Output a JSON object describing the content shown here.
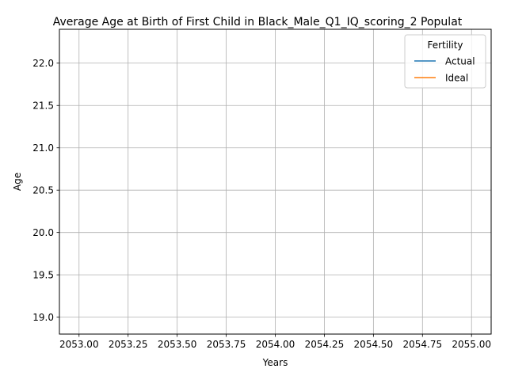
{
  "chart_data": {
    "type": "line",
    "title": "Average Age at Birth of First Child in Black_Male_Q1_IQ_scoring_2 Populat",
    "xlabel": "Years",
    "ylabel": "Age",
    "xlim": [
      2052.9,
      2055.1
    ],
    "ylim": [
      18.8,
      22.4
    ],
    "xticks": [
      2053.0,
      2053.25,
      2053.5,
      2053.75,
      2054.0,
      2054.25,
      2054.5,
      2054.75,
      2055.0
    ],
    "xtick_labels": [
      "2053.00",
      "2053.25",
      "2053.50",
      "2053.75",
      "2054.00",
      "2054.25",
      "2054.50",
      "2054.75",
      "2055.00"
    ],
    "yticks": [
      19.0,
      19.5,
      20.0,
      20.5,
      21.0,
      21.5,
      22.0
    ],
    "ytick_labels": [
      "19.0",
      "19.5",
      "20.0",
      "20.5",
      "21.0",
      "21.5",
      "22.0"
    ],
    "grid": true,
    "legend": {
      "title": "Fertility",
      "placement": "top-right"
    },
    "series": [
      {
        "name": "Actual",
        "color": "#1f77b4",
        "x": [],
        "y": []
      },
      {
        "name": "Ideal",
        "color": "#ff7f0e",
        "x": [],
        "y": []
      }
    ]
  }
}
